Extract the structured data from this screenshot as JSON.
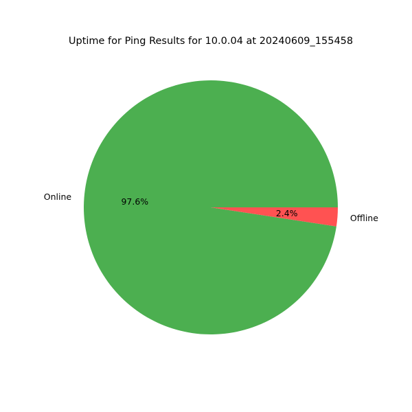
{
  "chart_data": {
    "type": "pie",
    "title": "Uptime for Ping Results for 10.0.04 at 20240609_155458",
    "slices": [
      {
        "label": "Online",
        "value": 97.6,
        "pct_label": "97.6%",
        "color": "#4caf50"
      },
      {
        "label": "Offline",
        "value": 2.4,
        "pct_label": "2.4%",
        "color": "#ff5252"
      }
    ],
    "start_angle_deg": 0,
    "direction": "counterclockwise"
  }
}
